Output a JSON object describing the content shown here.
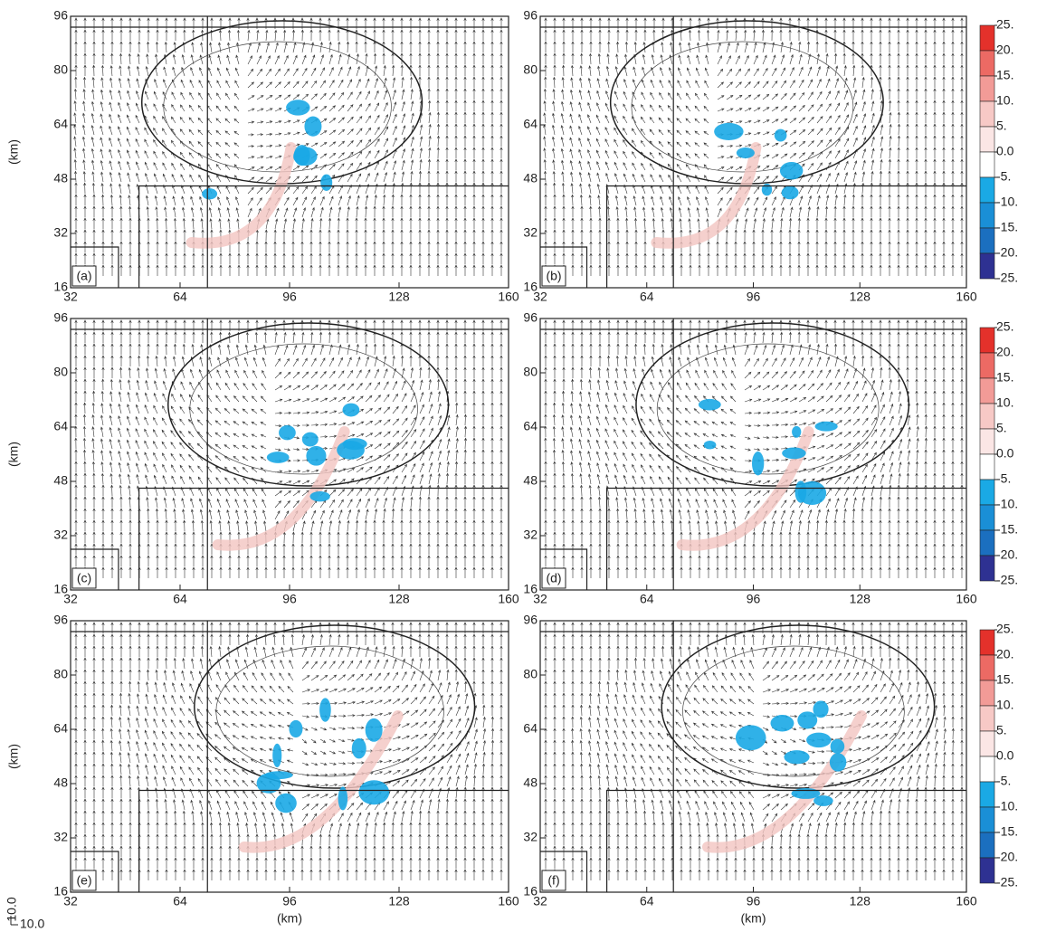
{
  "chart_data": [
    {
      "type": "vector",
      "panel_label": "(a)",
      "ylabel": "(km)",
      "xlim": [
        32,
        160
      ],
      "ylim": [
        16,
        96
      ],
      "xticks": [
        32,
        64,
        96,
        128,
        160
      ],
      "yticks": [
        16,
        32,
        48,
        64,
        80,
        96
      ]
    },
    {
      "type": "vector",
      "panel_label": "(b)",
      "xlim": [
        32,
        160
      ],
      "ylim": [
        16,
        96
      ],
      "xticks": [
        32,
        64,
        96,
        128,
        160
      ],
      "yticks": [
        16,
        32,
        48,
        64,
        80,
        96
      ]
    },
    {
      "type": "vector",
      "panel_label": "(c)",
      "ylabel": "(km)",
      "xlim": [
        32,
        160
      ],
      "ylim": [
        16,
        96
      ],
      "xticks": [
        32,
        64,
        96,
        128,
        160
      ],
      "yticks": [
        16,
        32,
        48,
        64,
        80,
        96
      ]
    },
    {
      "type": "vector",
      "panel_label": "(d)",
      "xlim": [
        32,
        160
      ],
      "ylim": [
        16,
        96
      ],
      "xticks": [
        32,
        64,
        96,
        128,
        160
      ],
      "yticks": [
        16,
        32,
        48,
        64,
        80,
        96
      ]
    },
    {
      "type": "vector",
      "panel_label": "(e)",
      "ylabel": "(km)",
      "xlabel": "(km)",
      "xlim": [
        32,
        160
      ],
      "ylim": [
        16,
        96
      ],
      "xticks": [
        32,
        64,
        96,
        128,
        160
      ],
      "yticks": [
        16,
        32,
        48,
        64,
        80,
        96
      ]
    },
    {
      "type": "vector",
      "panel_label": "(f)",
      "xlabel": "(km)",
      "xlim": [
        32,
        160
      ],
      "ylim": [
        16,
        96
      ],
      "xticks": [
        32,
        64,
        96,
        128,
        160
      ],
      "yticks": [
        16,
        32,
        48,
        64,
        80,
        96
      ]
    }
  ],
  "colorbar": {
    "lim": [
      25,
      -25
    ],
    "ticks": [
      {
        "value": 25,
        "label": "25."
      },
      {
        "value": 20,
        "label": "20."
      },
      {
        "value": 15,
        "label": "15."
      },
      {
        "value": 10,
        "label": "10."
      },
      {
        "value": 5,
        "label": "5."
      },
      {
        "value": 0,
        "label": "0.0"
      },
      {
        "value": -5,
        "label": "-5."
      },
      {
        "value": -10,
        "label": "-10."
      },
      {
        "value": -15,
        "label": "-15."
      },
      {
        "value": -20,
        "label": "-20."
      },
      {
        "value": -25,
        "label": "-25."
      }
    ],
    "colors": [
      "#e4312b",
      "#ec6a64",
      "#f29b97",
      "#f7c9c6",
      "#fbe6e5",
      "#ffffff",
      "#1aa9e5",
      "#1a8fd6",
      "#1b6fbf",
      "#2e3192"
    ]
  },
  "reference_vector": {
    "u_label": "10.0",
    "v_label": "10.0"
  }
}
